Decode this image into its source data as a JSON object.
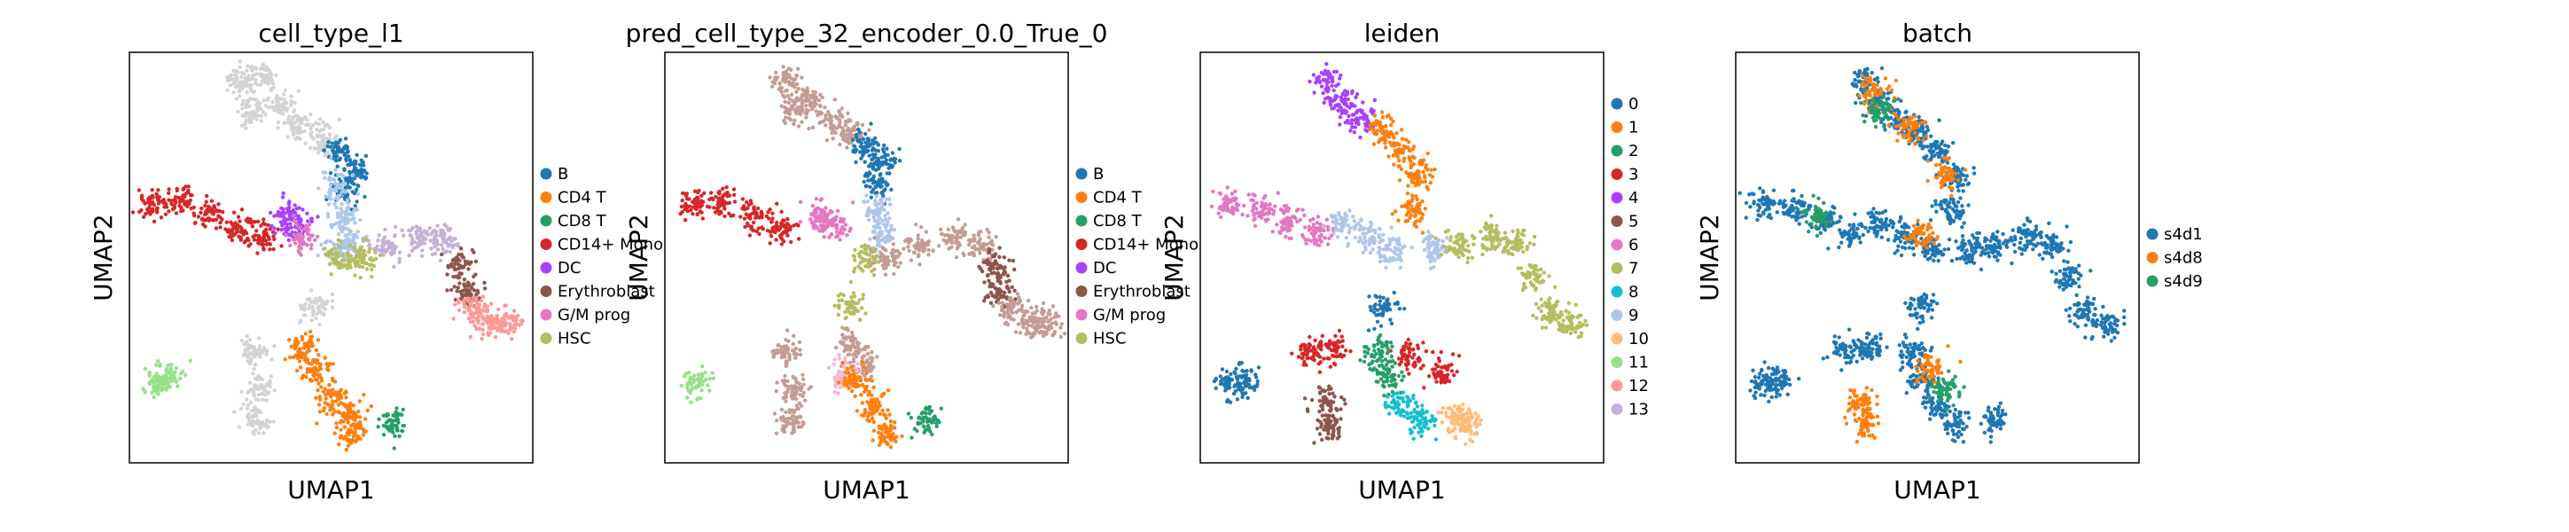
{
  "chart_data": [
    {
      "type": "scatter",
      "title": "cell_type_l1",
      "xlabel": "UMAP1",
      "ylabel": "UMAP2",
      "grid": false,
      "legend_placement": "right",
      "legend": [
        {
          "label": "B",
          "color": "#1f77b4"
        },
        {
          "label": "CD4 T",
          "color": "#ff7f0e"
        },
        {
          "label": "CD8 T",
          "color": "#279e68"
        },
        {
          "label": "CD14+ Mono",
          "color": "#d62728"
        },
        {
          "label": "DC",
          "color": "#aa40fc"
        },
        {
          "label": "Erythroblast",
          "color": "#8c564b"
        },
        {
          "label": "G/M prog",
          "color": "#e377c2"
        },
        {
          "label": "HSC",
          "color": "#b5bd61"
        }
      ],
      "clusters": [
        {
          "color": "#d3d3d3",
          "points": [
            [
              0.28,
              0.07
            ],
            [
              0.3,
              0.14
            ],
            [
              0.33,
              0.06
            ],
            [
              0.37,
              0.13
            ],
            [
              0.42,
              0.18
            ],
            [
              0.48,
              0.21
            ]
          ]
        },
        {
          "color": "#1f77b4",
          "points": [
            [
              0.52,
              0.24
            ],
            [
              0.56,
              0.28
            ],
            [
              0.54,
              0.34
            ]
          ]
        },
        {
          "color": "#aec7e8",
          "points": [
            [
              0.51,
              0.33
            ],
            [
              0.53,
              0.4
            ],
            [
              0.55,
              0.46
            ],
            [
              0.52,
              0.49
            ]
          ]
        },
        {
          "color": "#d62728",
          "points": [
            [
              0.05,
              0.37
            ],
            [
              0.12,
              0.36
            ],
            [
              0.2,
              0.39
            ],
            [
              0.27,
              0.43
            ],
            [
              0.33,
              0.45
            ]
          ]
        },
        {
          "color": "#aa40fc",
          "points": [
            [
              0.39,
              0.4
            ],
            [
              0.42,
              0.42
            ]
          ]
        },
        {
          "color": "#e377c2",
          "points": [
            [
              0.43,
              0.45
            ]
          ]
        },
        {
          "color": "#b5bd61",
          "points": [
            [
              0.52,
              0.5
            ],
            [
              0.58,
              0.5
            ]
          ]
        },
        {
          "color": "#c5b0d5",
          "points": [
            [
              0.64,
              0.47
            ],
            [
              0.72,
              0.45
            ],
            [
              0.78,
              0.46
            ]
          ]
        },
        {
          "color": "#8c564b",
          "points": [
            [
              0.82,
              0.52
            ],
            [
              0.83,
              0.58
            ]
          ]
        },
        {
          "color": "#ff9896",
          "points": [
            [
              0.85,
              0.62
            ],
            [
              0.89,
              0.66
            ],
            [
              0.94,
              0.66
            ]
          ]
        },
        {
          "color": "#98df8a",
          "points": [
            [
              0.07,
              0.81
            ],
            [
              0.1,
              0.79
            ]
          ]
        },
        {
          "color": "#d3d3d3",
          "points": [
            [
              0.31,
              0.73
            ],
            [
              0.32,
              0.82
            ],
            [
              0.31,
              0.9
            ]
          ]
        },
        {
          "color": "#ff7f0e",
          "points": [
            [
              0.43,
              0.72
            ],
            [
              0.46,
              0.77
            ],
            [
              0.5,
              0.84
            ],
            [
              0.54,
              0.88
            ],
            [
              0.55,
              0.93
            ]
          ]
        },
        {
          "color": "#279e68",
          "points": [
            [
              0.65,
              0.9
            ]
          ]
        },
        {
          "color": "#d3d3d3",
          "points": [
            [
              0.46,
              0.62
            ]
          ]
        }
      ]
    },
    {
      "type": "scatter",
      "title": "pred_cell_type_32_encoder_0.0_True_0",
      "xlabel": "UMAP1",
      "ylabel": "UMAP2",
      "grid": false,
      "legend_placement": "right",
      "legend": [
        {
          "label": "B",
          "color": "#1f77b4"
        },
        {
          "label": "CD4 T",
          "color": "#ff7f0e"
        },
        {
          "label": "CD8 T",
          "color": "#279e68"
        },
        {
          "label": "CD14+ Mono",
          "color": "#d62728"
        },
        {
          "label": "DC",
          "color": "#aa40fc"
        },
        {
          "label": "Erythroblast",
          "color": "#8c564b"
        },
        {
          "label": "G/M prog",
          "color": "#e377c2"
        },
        {
          "label": "HSC",
          "color": "#b5bd61"
        }
      ],
      "clusters": [
        {
          "color": "#c49c94",
          "points": [
            [
              0.3,
              0.07
            ],
            [
              0.32,
              0.14
            ],
            [
              0.36,
              0.12
            ],
            [
              0.41,
              0.17
            ],
            [
              0.46,
              0.2
            ]
          ]
        },
        {
          "color": "#1f77b4",
          "points": [
            [
              0.5,
              0.23
            ],
            [
              0.54,
              0.26
            ],
            [
              0.53,
              0.32
            ]
          ]
        },
        {
          "color": "#aec7e8",
          "points": [
            [
              0.53,
              0.38
            ],
            [
              0.54,
              0.44
            ]
          ]
        },
        {
          "color": "#d62728",
          "points": [
            [
              0.07,
              0.37
            ],
            [
              0.14,
              0.37
            ],
            [
              0.22,
              0.4
            ],
            [
              0.29,
              0.43
            ]
          ]
        },
        {
          "color": "#e377c2",
          "points": [
            [
              0.38,
              0.4
            ],
            [
              0.42,
              0.42
            ]
          ]
        },
        {
          "color": "#b5bd61",
          "points": [
            [
              0.5,
              0.5
            ]
          ]
        },
        {
          "color": "#c49c94",
          "points": [
            [
              0.56,
              0.5
            ],
            [
              0.63,
              0.47
            ],
            [
              0.72,
              0.45
            ],
            [
              0.78,
              0.47
            ]
          ]
        },
        {
          "color": "#8c564b",
          "points": [
            [
              0.82,
              0.52
            ],
            [
              0.83,
              0.58
            ]
          ]
        },
        {
          "color": "#c49c94",
          "points": [
            [
              0.86,
              0.63
            ],
            [
              0.91,
              0.66
            ],
            [
              0.95,
              0.66
            ]
          ]
        },
        {
          "color": "#98df8a",
          "points": [
            [
              0.08,
              0.81
            ]
          ]
        },
        {
          "color": "#c49c94",
          "points": [
            [
              0.3,
              0.73
            ],
            [
              0.32,
              0.82
            ],
            [
              0.31,
              0.9
            ],
            [
              0.46,
              0.71
            ],
            [
              0.49,
              0.76
            ]
          ]
        },
        {
          "color": "#f7b6d2",
          "points": [
            [
              0.44,
              0.78
            ]
          ]
        },
        {
          "color": "#ff7f0e",
          "points": [
            [
              0.47,
              0.8
            ],
            [
              0.52,
              0.86
            ],
            [
              0.55,
              0.93
            ]
          ]
        },
        {
          "color": "#279e68",
          "points": [
            [
              0.65,
              0.9
            ]
          ]
        },
        {
          "color": "#b5bd61",
          "points": [
            [
              0.46,
              0.62
            ]
          ]
        }
      ]
    },
    {
      "type": "scatter",
      "title": "leiden",
      "xlabel": "UMAP1",
      "ylabel": "UMAP2",
      "grid": false,
      "legend_placement": "right",
      "legend": [
        {
          "label": "0",
          "color": "#1f77b4"
        },
        {
          "label": "1",
          "color": "#ff7f0e"
        },
        {
          "label": "2",
          "color": "#279e68"
        },
        {
          "label": "3",
          "color": "#d62728"
        },
        {
          "label": "4",
          "color": "#aa40fc"
        },
        {
          "label": "5",
          "color": "#8c564b"
        },
        {
          "label": "6",
          "color": "#e377c2"
        },
        {
          "label": "7",
          "color": "#b5bd61"
        },
        {
          "label": "8",
          "color": "#17becf"
        },
        {
          "label": "9",
          "color": "#aec7e8"
        },
        {
          "label": "10",
          "color": "#ffbb78"
        },
        {
          "label": "11",
          "color": "#98df8a"
        },
        {
          "label": "12",
          "color": "#ff9896"
        },
        {
          "label": "13",
          "color": "#c5b0d5"
        }
      ],
      "clusters": [
        {
          "color": "#aa40fc",
          "points": [
            [
              0.32,
              0.07
            ],
            [
              0.35,
              0.12
            ],
            [
              0.4,
              0.16
            ]
          ]
        },
        {
          "color": "#ff7f0e",
          "points": [
            [
              0.45,
              0.19
            ],
            [
              0.5,
              0.24
            ],
            [
              0.54,
              0.3
            ],
            [
              0.53,
              0.38
            ]
          ]
        },
        {
          "color": "#e377c2",
          "points": [
            [
              0.07,
              0.37
            ],
            [
              0.15,
              0.38
            ],
            [
              0.22,
              0.41
            ],
            [
              0.29,
              0.44
            ]
          ]
        },
        {
          "color": "#aec7e8",
          "points": [
            [
              0.36,
              0.42
            ],
            [
              0.42,
              0.45
            ],
            [
              0.48,
              0.48
            ],
            [
              0.58,
              0.48
            ]
          ]
        },
        {
          "color": "#b5bd61",
          "points": [
            [
              0.64,
              0.47
            ],
            [
              0.72,
              0.45
            ],
            [
              0.78,
              0.47
            ],
            [
              0.82,
              0.55
            ],
            [
              0.86,
              0.63
            ],
            [
              0.92,
              0.66
            ]
          ]
        },
        {
          "color": "#1f77b4",
          "points": [
            [
              0.46,
              0.62
            ],
            [
              0.07,
              0.81
            ],
            [
              0.11,
              0.8
            ]
          ]
        },
        {
          "color": "#d62728",
          "points": [
            [
              0.27,
              0.73
            ],
            [
              0.33,
              0.72
            ],
            [
              0.52,
              0.74
            ],
            [
              0.6,
              0.78
            ]
          ]
        },
        {
          "color": "#8c564b",
          "points": [
            [
              0.31,
              0.85
            ],
            [
              0.32,
              0.91
            ]
          ]
        },
        {
          "color": "#279e68",
          "points": [
            [
              0.44,
              0.73
            ],
            [
              0.46,
              0.79
            ]
          ]
        },
        {
          "color": "#17becf",
          "points": [
            [
              0.5,
              0.86
            ],
            [
              0.55,
              0.9
            ]
          ]
        },
        {
          "color": "#ffbb78",
          "points": [
            [
              0.64,
              0.89
            ],
            [
              0.66,
              0.91
            ]
          ]
        }
      ]
    },
    {
      "type": "scatter",
      "title": "batch",
      "xlabel": "UMAP1",
      "ylabel": "UMAP2",
      "grid": false,
      "legend_placement": "right",
      "legend": [
        {
          "label": "s4d1",
          "color": "#1f77b4"
        },
        {
          "label": "s4d8",
          "color": "#ff7f0e"
        },
        {
          "label": "s4d9",
          "color": "#279e68"
        }
      ],
      "clusters": [
        {
          "color": "#1f77b4",
          "points": [
            [
              0.32,
              0.07
            ],
            [
              0.35,
              0.12
            ],
            [
              0.4,
              0.16
            ],
            [
              0.45,
              0.19
            ],
            [
              0.5,
              0.24
            ],
            [
              0.54,
              0.3
            ],
            [
              0.53,
              0.38
            ],
            [
              0.07,
              0.37
            ],
            [
              0.15,
              0.38
            ],
            [
              0.22,
              0.41
            ],
            [
              0.29,
              0.44
            ],
            [
              0.36,
              0.42
            ],
            [
              0.42,
              0.45
            ],
            [
              0.48,
              0.48
            ],
            [
              0.58,
              0.48
            ],
            [
              0.64,
              0.47
            ],
            [
              0.72,
              0.45
            ],
            [
              0.78,
              0.47
            ],
            [
              0.82,
              0.55
            ],
            [
              0.86,
              0.63
            ],
            [
              0.92,
              0.66
            ],
            [
              0.46,
              0.62
            ],
            [
              0.07,
              0.81
            ],
            [
              0.11,
              0.8
            ],
            [
              0.27,
              0.73
            ],
            [
              0.33,
              0.72
            ],
            [
              0.44,
              0.73
            ],
            [
              0.46,
              0.79
            ],
            [
              0.5,
              0.86
            ],
            [
              0.55,
              0.9
            ],
            [
              0.64,
              0.89
            ]
          ]
        },
        {
          "color": "#ff7f0e",
          "points": [
            [
              0.31,
              0.85
            ],
            [
              0.32,
              0.91
            ],
            [
              0.34,
              0.1
            ],
            [
              0.43,
              0.18
            ],
            [
              0.52,
              0.3
            ],
            [
              0.46,
              0.44
            ],
            [
              0.48,
              0.77
            ]
          ]
        },
        {
          "color": "#279e68",
          "points": [
            [
              0.36,
              0.14
            ],
            [
              0.2,
              0.4
            ],
            [
              0.52,
              0.82
            ]
          ]
        }
      ]
    }
  ]
}
